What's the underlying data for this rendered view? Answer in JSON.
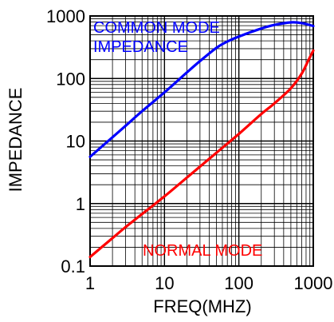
{
  "chart_data": {
    "type": "line",
    "xlabel": "FREQ(MHZ)",
    "ylabel": "IMPEDANCE",
    "x_scale": "log",
    "y_scale": "log",
    "xlim": [
      1,
      1000
    ],
    "ylim": [
      0.1,
      1000
    ],
    "x_ticks": [
      "1",
      "10",
      "100",
      "1000"
    ],
    "y_ticks": [
      "0.1",
      "1",
      "10",
      "100",
      "1000"
    ],
    "grid": true,
    "series": [
      {
        "name": "COMMON MODE IMPEDANCE",
        "label_lines": [
          "COMMON MODE",
          "IMPEDANCE"
        ],
        "color": "#0000ff",
        "points": [
          [
            1,
            5.6
          ],
          [
            2,
            11.5
          ],
          [
            3,
            17.5
          ],
          [
            5,
            30
          ],
          [
            10,
            60
          ],
          [
            20,
            125
          ],
          [
            30,
            190
          ],
          [
            50,
            310
          ],
          [
            70,
            390
          ],
          [
            100,
            470
          ],
          [
            200,
            630
          ],
          [
            300,
            720
          ],
          [
            500,
            790
          ],
          [
            700,
            770
          ],
          [
            1000,
            690
          ]
        ]
      },
      {
        "name": "NORMAL MODE",
        "label_lines": [
          "NORMAL MODE"
        ],
        "color": "#ff0000",
        "points": [
          [
            1,
            0.14
          ],
          [
            2,
            0.28
          ],
          [
            3,
            0.42
          ],
          [
            5,
            0.68
          ],
          [
            10,
            1.3
          ],
          [
            20,
            2.6
          ],
          [
            30,
            3.9
          ],
          [
            50,
            6.5
          ],
          [
            100,
            13
          ],
          [
            200,
            27
          ],
          [
            300,
            40
          ],
          [
            500,
            70
          ],
          [
            700,
            120
          ],
          [
            850,
            190
          ],
          [
            1000,
            280
          ]
        ]
      }
    ]
  }
}
